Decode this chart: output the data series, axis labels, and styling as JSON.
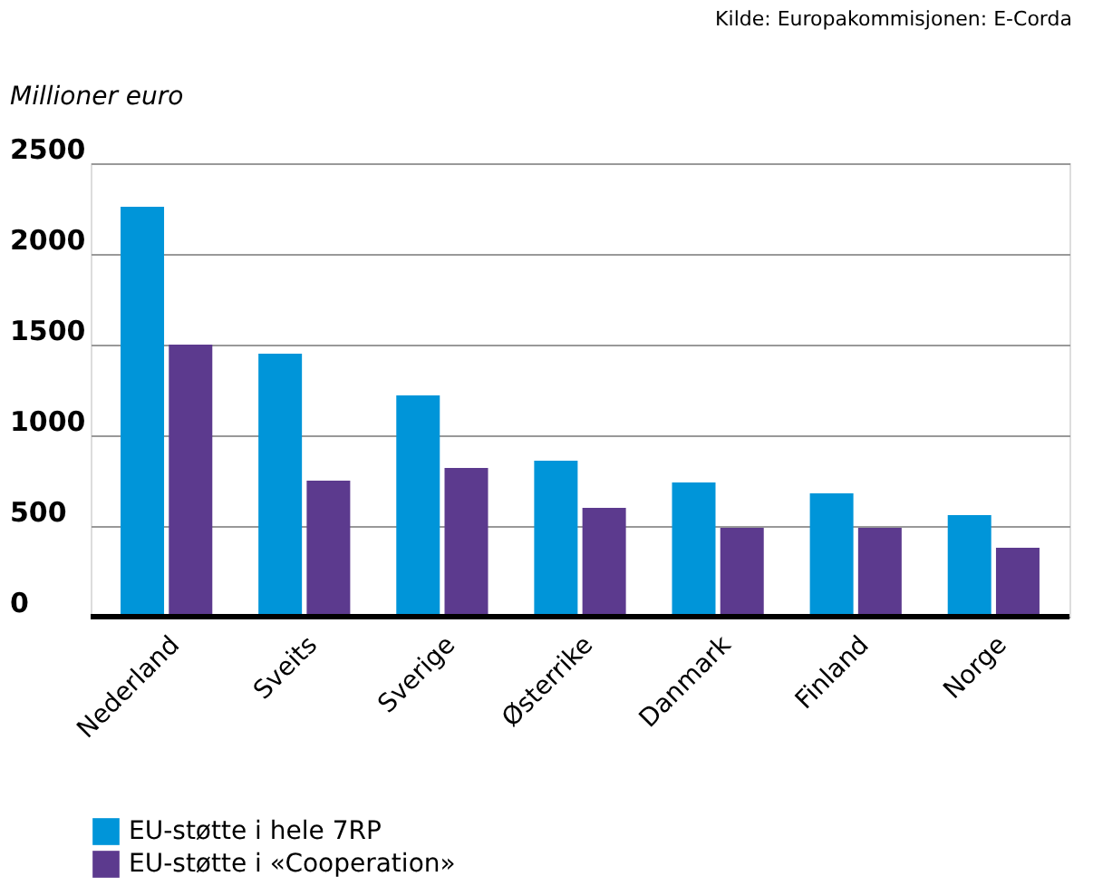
{
  "chart_data": {
    "type": "bar",
    "ylabel": "Millioner euro",
    "annotations": [
      "Kilde: Europakommisjonen: E-Corda"
    ],
    "categories": [
      "Nederland",
      "Sveits",
      "Sverige",
      "Østerrike",
      "Danmark",
      "Finland",
      "Norge"
    ],
    "series": [
      {
        "name": "EU-støtte i hele 7RP",
        "color": "#0095d9",
        "values": [
          2260,
          1450,
          1220,
          860,
          740,
          680,
          560
        ]
      },
      {
        "name": "EU-støtte i «Cooperation»",
        "color": "#5c3a8e",
        "values": [
          1500,
          750,
          820,
          600,
          490,
          490,
          380
        ]
      }
    ],
    "ylim": [
      0,
      2500
    ],
    "yticks": [
      0,
      500,
      1000,
      1500,
      2000,
      2500
    ],
    "grid": "y",
    "legend": "bottom"
  }
}
